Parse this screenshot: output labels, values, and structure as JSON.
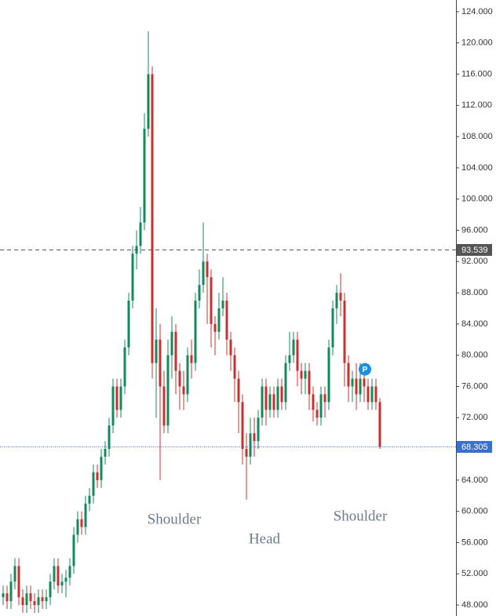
{
  "chart_data": {
    "type": "candlestick",
    "open": [
      49,
      49.5,
      48.5,
      51,
      53,
      49,
      48,
      49.5,
      48.5,
      48,
      49,
      48.5,
      49,
      51,
      53,
      50.5,
      51,
      51.5,
      53,
      57,
      59,
      58,
      61,
      62,
      65,
      64,
      67,
      68,
      71,
      76,
      73,
      76,
      81,
      87,
      93,
      94,
      97,
      109,
      116,
      79,
      82,
      76,
      71,
      80,
      83,
      78,
      76,
      75,
      80,
      79,
      87,
      89,
      92,
      90,
      84,
      83,
      86,
      87,
      82,
      80,
      77,
      74,
      68,
      67,
      70,
      69,
      72,
      76,
      73,
      75,
      73,
      76,
      74,
      79,
      80,
      82,
      78,
      77,
      78,
      75,
      73,
      72,
      75,
      74,
      81,
      86,
      88,
      87,
      79,
      76,
      77,
      75,
      77,
      76,
      74,
      76,
      74
    ],
    "high": [
      50.5,
      50.5,
      52,
      54,
      54,
      50,
      50.5,
      50.5,
      49.5,
      50,
      50,
      50,
      52,
      54,
      54,
      52,
      52.5,
      54,
      58,
      60,
      60,
      62,
      63,
      66,
      66,
      68,
      69,
      72,
      77,
      77,
      77,
      82,
      88,
      94,
      96,
      99,
      111,
      121.5,
      117,
      86,
      84,
      78,
      82,
      85,
      84,
      79,
      78,
      81,
      82,
      88,
      91,
      97,
      93,
      91,
      85,
      88,
      90,
      88,
      83,
      81,
      78,
      75,
      70,
      72,
      72,
      73,
      77,
      77,
      76,
      76,
      77,
      77,
      80,
      83,
      83,
      83,
      79,
      79,
      79,
      76,
      74,
      76,
      76,
      82,
      87,
      89,
      90.5,
      88,
      80,
      78,
      79,
      79,
      78,
      77,
      77,
      77,
      74.5
    ],
    "low": [
      48,
      47.5,
      47.5,
      50,
      48,
      47,
      47,
      47.5,
      47,
      47,
      47.5,
      47.5,
      48,
      50,
      49.5,
      49.5,
      49,
      50.5,
      52,
      56,
      57,
      57,
      60,
      61,
      63,
      63,
      66,
      67,
      70,
      72,
      72,
      75,
      80,
      86,
      91,
      93,
      96,
      108,
      77,
      72,
      64,
      70,
      70,
      77,
      75,
      73,
      73,
      74,
      77,
      78,
      86,
      88,
      84,
      81,
      80,
      82,
      85,
      80,
      78,
      74,
      70,
      66,
      61.5,
      66,
      67,
      68,
      71,
      71,
      72,
      72,
      72,
      73,
      73,
      78,
      79,
      76,
      75,
      75,
      73,
      71.5,
      71,
      71,
      72,
      73,
      80,
      84,
      85,
      76,
      74,
      74,
      73,
      74,
      74,
      73,
      73,
      73,
      68
    ],
    "close": [
      49.5,
      48.5,
      51,
      53,
      49,
      48,
      49.5,
      48.5,
      48,
      49,
      48.5,
      49,
      51,
      53,
      50.5,
      51,
      51.5,
      53,
      57,
      59,
      58,
      61,
      62,
      65,
      64,
      67,
      68,
      71,
      76,
      73,
      76,
      81,
      87,
      93,
      94,
      97,
      109,
      116,
      79,
      82,
      76,
      71,
      80,
      83,
      78,
      76,
      75,
      80,
      79,
      87,
      89,
      92,
      90,
      84,
      83,
      86,
      87,
      82,
      80,
      77,
      74,
      68,
      67,
      70,
      69,
      72,
      76,
      73,
      75,
      73,
      76,
      74,
      79,
      80,
      82,
      78,
      77,
      78,
      75,
      73,
      72,
      75,
      74,
      81,
      86,
      88,
      87,
      79,
      76,
      77,
      75,
      77,
      76,
      74,
      76,
      74,
      68.3
    ],
    "up_color": "#138a5c",
    "down_color": "#cc2f2f",
    "ylim": [
      46.6,
      125.5
    ],
    "yticks": [
      {
        "value": 48,
        "label": "48.000"
      },
      {
        "value": 52,
        "label": "52.000"
      },
      {
        "value": 56,
        "label": "56.000"
      },
      {
        "value": 60,
        "label": "60.000"
      },
      {
        "value": 64,
        "label": "64.000"
      },
      {
        "value": 68,
        "label": "68.000"
      },
      {
        "value": 72,
        "label": "72.000"
      },
      {
        "value": 76,
        "label": "76.000"
      },
      {
        "value": 80,
        "label": "80.000"
      },
      {
        "value": 84,
        "label": "84.000"
      },
      {
        "value": 88,
        "label": "88.000"
      },
      {
        "value": 92,
        "label": "92.000"
      },
      {
        "value": 96,
        "label": "96.000"
      },
      {
        "value": 100,
        "label": "100.000"
      },
      {
        "value": 104,
        "label": "104.000"
      },
      {
        "value": 108,
        "label": "108.000"
      },
      {
        "value": 112,
        "label": "112.000"
      },
      {
        "value": 116,
        "label": "116.000"
      },
      {
        "value": 120,
        "label": "120.000"
      },
      {
        "value": 124,
        "label": "124.000"
      }
    ],
    "price_lines": [
      {
        "value": 93.539,
        "color": "#555555",
        "style": "dashed"
      },
      {
        "value": 68.305,
        "color": "#3b6fd4",
        "style": "dotted"
      }
    ],
    "marker": {
      "label": "P",
      "value": 78.2,
      "color": "#1a8fe3"
    },
    "annotations": [
      "Shoulder",
      "Head",
      "Shoulder"
    ]
  }
}
